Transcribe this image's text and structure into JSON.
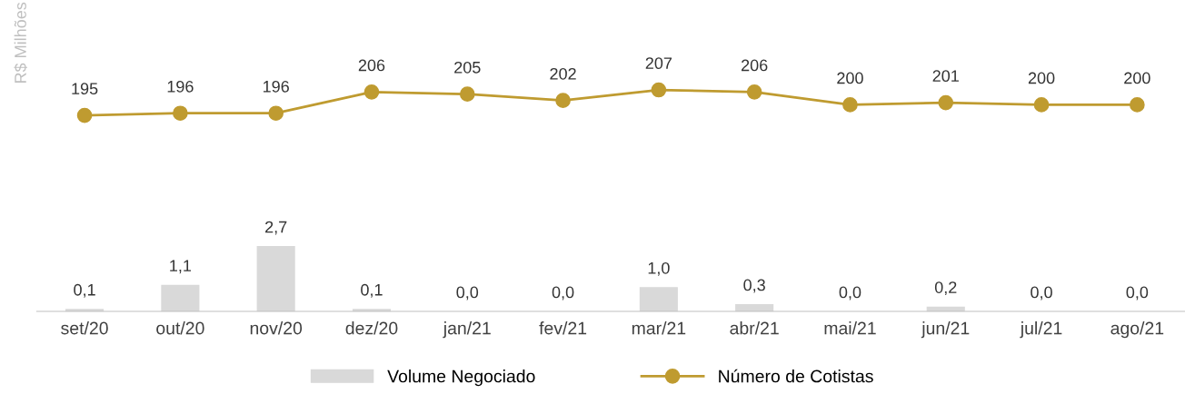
{
  "chart_data": [
    {
      "type": "line",
      "categories": [
        null,
        null,
        null,
        null,
        null,
        null,
        null,
        null,
        null,
        null,
        null,
        null
      ],
      "series": [
        {
          "name": "Número de Cotistas",
          "color": "#bf9b30",
          "values": [
            195,
            196,
            196,
            206,
            205,
            202,
            207,
            206,
            200,
            201,
            200,
            200
          ]
        }
      ],
      "data_labels": true,
      "marker": "circle",
      "line_style": "solid",
      "tick_labels": false,
      "legend": "bottom"
    },
    {
      "type": "bar",
      "annotations": [
        "R$ Milhões"
      ],
      "categories": [
        "set/20",
        "out/20",
        "nov/20",
        "dez/20",
        "jan/21",
        "fev/21",
        "mar/21",
        "abr/21",
        "mai/21",
        "jun/21",
        "jul/21",
        "ago/21"
      ],
      "series": [
        {
          "name": "Volume Negociado",
          "color": "#d9d9d9",
          "values": [
            0.1,
            1.1,
            2.7,
            0.1,
            0.0,
            0.0,
            1.0,
            0.3,
            0.0,
            0.2,
            0.0,
            0.0
          ],
          "value_labels": [
            "0,1",
            "1,1",
            "2,7",
            "0,1",
            "0,0",
            "0,0",
            "1,0",
            "0,3",
            "0,0",
            "0,2",
            "0,0",
            "0,0"
          ]
        }
      ],
      "data_labels": true,
      "tick_labels": "x",
      "legend": "bottom"
    }
  ]
}
